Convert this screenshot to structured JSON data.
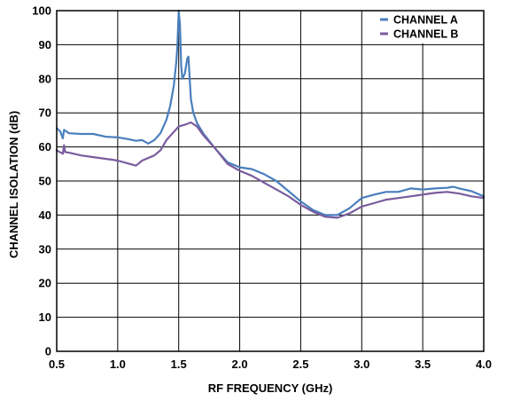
{
  "chart_data": {
    "type": "line",
    "xlabel": "RF FREQUENCY (GHz)",
    "ylabel": "CHANNEL ISOLATION (dB)",
    "xlim": [
      0.5,
      4.0
    ],
    "ylim": [
      0,
      100
    ],
    "x_ticks": [
      "0.5",
      "1.0",
      "1.5",
      "2.0",
      "2.5",
      "3.0",
      "3.5",
      "4.0"
    ],
    "y_ticks": [
      "0",
      "10",
      "20",
      "30",
      "40",
      "50",
      "60",
      "70",
      "80",
      "90",
      "100"
    ],
    "grid": true,
    "legend_position": "top-right",
    "series": [
      {
        "name": "CHANNEL A",
        "color": "#4a7fbd",
        "points": [
          [
            0.5,
            65.5
          ],
          [
            0.53,
            64.5
          ],
          [
            0.55,
            62.5
          ],
          [
            0.56,
            65.0
          ],
          [
            0.6,
            64.0
          ],
          [
            0.7,
            63.8
          ],
          [
            0.8,
            63.8
          ],
          [
            0.9,
            63.0
          ],
          [
            1.0,
            62.8
          ],
          [
            1.1,
            62.2
          ],
          [
            1.15,
            61.8
          ],
          [
            1.2,
            62.0
          ],
          [
            1.25,
            61.0
          ],
          [
            1.3,
            62.0
          ],
          [
            1.35,
            64.0
          ],
          [
            1.4,
            68.0
          ],
          [
            1.43,
            72.0
          ],
          [
            1.46,
            78.0
          ],
          [
            1.48,
            85.0
          ],
          [
            1.49,
            90.0
          ],
          [
            1.5,
            100.0
          ],
          [
            1.51,
            96.0
          ],
          [
            1.52,
            84.0
          ],
          [
            1.53,
            80.0
          ],
          [
            1.55,
            81.5
          ],
          [
            1.57,
            86.0
          ],
          [
            1.58,
            86.5
          ],
          [
            1.59,
            80.0
          ],
          [
            1.6,
            74.0
          ],
          [
            1.62,
            70.0
          ],
          [
            1.65,
            67.0
          ],
          [
            1.7,
            64.0
          ],
          [
            1.8,
            59.5
          ],
          [
            1.9,
            55.5
          ],
          [
            2.0,
            54.0
          ],
          [
            2.1,
            53.5
          ],
          [
            2.2,
            52.0
          ],
          [
            2.3,
            50.0
          ],
          [
            2.4,
            47.0
          ],
          [
            2.5,
            44.0
          ],
          [
            2.6,
            41.5
          ],
          [
            2.7,
            40.0
          ],
          [
            2.8,
            40.0
          ],
          [
            2.9,
            42.0
          ],
          [
            3.0,
            45.0
          ],
          [
            3.1,
            46.0
          ],
          [
            3.2,
            46.8
          ],
          [
            3.3,
            46.8
          ],
          [
            3.4,
            47.8
          ],
          [
            3.5,
            47.5
          ],
          [
            3.6,
            47.8
          ],
          [
            3.7,
            48.0
          ],
          [
            3.75,
            48.3
          ],
          [
            3.8,
            47.8
          ],
          [
            3.9,
            47.0
          ],
          [
            4.0,
            45.5
          ]
        ]
      },
      {
        "name": "CHANNEL B",
        "color": "#7a5c9e",
        "points": [
          [
            0.5,
            59.0
          ],
          [
            0.55,
            58.0
          ],
          [
            0.56,
            60.5
          ],
          [
            0.57,
            58.5
          ],
          [
            0.6,
            58.3
          ],
          [
            0.7,
            57.5
          ],
          [
            0.8,
            57.0
          ],
          [
            0.9,
            56.5
          ],
          [
            1.0,
            56.0
          ],
          [
            1.1,
            55.0
          ],
          [
            1.15,
            54.5
          ],
          [
            1.2,
            56.0
          ],
          [
            1.3,
            57.5
          ],
          [
            1.35,
            59.0
          ],
          [
            1.4,
            62.0
          ],
          [
            1.45,
            64.0
          ],
          [
            1.5,
            66.0
          ],
          [
            1.55,
            66.5
          ],
          [
            1.6,
            67.2
          ],
          [
            1.65,
            66.0
          ],
          [
            1.7,
            63.5
          ],
          [
            1.8,
            59.5
          ],
          [
            1.9,
            55.0
          ],
          [
            2.0,
            53.0
          ],
          [
            2.1,
            51.5
          ],
          [
            2.2,
            49.5
          ],
          [
            2.3,
            47.5
          ],
          [
            2.4,
            45.5
          ],
          [
            2.5,
            43.0
          ],
          [
            2.6,
            41.0
          ],
          [
            2.7,
            39.5
          ],
          [
            2.8,
            39.2
          ],
          [
            2.9,
            40.5
          ],
          [
            3.0,
            42.5
          ],
          [
            3.1,
            43.5
          ],
          [
            3.2,
            44.5
          ],
          [
            3.3,
            45.0
          ],
          [
            3.4,
            45.5
          ],
          [
            3.5,
            46.0
          ],
          [
            3.6,
            46.5
          ],
          [
            3.7,
            46.8
          ],
          [
            3.8,
            46.3
          ],
          [
            3.9,
            45.5
          ],
          [
            4.0,
            45.0
          ]
        ]
      }
    ]
  }
}
